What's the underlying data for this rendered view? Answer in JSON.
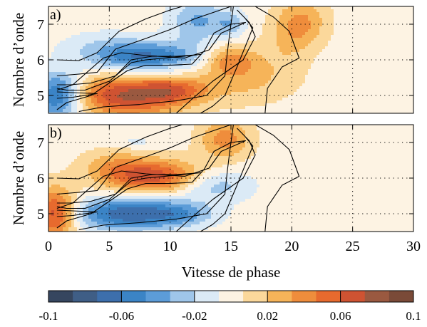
{
  "chart_data": [
    {
      "type": "heatmap",
      "panel_label": "a)",
      "ylabel": "Nombre d’onde",
      "xlim": [
        0,
        30
      ],
      "ylim": [
        4.5,
        7.5
      ],
      "yticks": [
        5,
        6,
        7
      ],
      "xticks": [
        0,
        5,
        10,
        15,
        20,
        25,
        30
      ],
      "grid": true,
      "blobs": [
        {
          "x": 0.8,
          "y": 5.0,
          "sx": 1.4,
          "sy": 0.45,
          "v": -0.07
        },
        {
          "x": 6.5,
          "y": 5.0,
          "sx": 3.2,
          "sy": 0.4,
          "v": 0.075
        },
        {
          "x": 10.5,
          "y": 5.15,
          "sx": 1.8,
          "sy": 0.25,
          "v": 0.035
        },
        {
          "x": 8.2,
          "y": 6.05,
          "sx": 3.0,
          "sy": 0.3,
          "v": -0.065
        },
        {
          "x": 4.5,
          "y": 6.4,
          "sx": 2.5,
          "sy": 0.3,
          "v": -0.015
        },
        {
          "x": 8.5,
          "y": 5.85,
          "sx": 2.2,
          "sy": 0.15,
          "v": 0.01
        },
        {
          "x": 16.0,
          "y": 5.5,
          "sx": 3.0,
          "sy": 0.5,
          "v": 0.025
        },
        {
          "x": 15.0,
          "y": 6.0,
          "sx": 1.4,
          "sy": 0.28,
          "v": 0.035
        },
        {
          "x": 12.3,
          "y": 7.1,
          "sx": 1.6,
          "sy": 0.45,
          "v": -0.035
        },
        {
          "x": 15.0,
          "y": 7.0,
          "sx": 0.9,
          "sy": 0.25,
          "v": -0.025
        },
        {
          "x": 20.8,
          "y": 7.05,
          "sx": 1.5,
          "sy": 0.5,
          "v": 0.035
        },
        {
          "x": 19.5,
          "y": 6.5,
          "sx": 1.3,
          "sy": 0.5,
          "v": 0.012
        }
      ]
    },
    {
      "type": "heatmap",
      "panel_label": "b)",
      "ylabel": "Nombre d’onde",
      "xlabel": "Vitesse de phase",
      "xlim": [
        0,
        30
      ],
      "ylim": [
        4.5,
        7.5
      ],
      "yticks": [
        5,
        6,
        7
      ],
      "xticks": [
        0,
        5,
        10,
        15,
        20,
        25,
        30
      ],
      "grid": true,
      "blobs": [
        {
          "x": 0.5,
          "y": 5.0,
          "sx": 1.2,
          "sy": 0.5,
          "v": 0.07
        },
        {
          "x": 6.5,
          "y": 5.0,
          "sx": 3.0,
          "sy": 0.32,
          "v": -0.07
        },
        {
          "x": 11.0,
          "y": 5.0,
          "sx": 2.0,
          "sy": 0.25,
          "v": -0.03
        },
        {
          "x": 8.5,
          "y": 6.05,
          "sx": 2.8,
          "sy": 0.33,
          "v": 0.07
        },
        {
          "x": 5.2,
          "y": 6.4,
          "sx": 1.8,
          "sy": 0.3,
          "v": 0.02
        },
        {
          "x": 13.5,
          "y": 5.8,
          "sx": 2.2,
          "sy": 0.3,
          "v": -0.03
        },
        {
          "x": 14.5,
          "y": 7.1,
          "sx": 1.5,
          "sy": 0.4,
          "v": 0.04
        },
        {
          "x": 7.3,
          "y": 7.0,
          "sx": 0.7,
          "sy": 0.1,
          "v": -0.015
        },
        {
          "x": 18.0,
          "y": 4.9,
          "sx": 1.5,
          "sy": 0.3,
          "v": -0.006
        }
      ]
    }
  ],
  "contours": [
    [
      [
        2.5,
        4.55
      ],
      [
        4.5,
        4.68
      ],
      [
        7.5,
        4.75
      ],
      [
        10.5,
        4.85
      ],
      [
        13.0,
        5.0
      ],
      [
        14.5,
        5.55
      ],
      [
        14.7,
        6.2
      ],
      [
        14.9,
        6.75
      ],
      [
        15.2,
        7.5
      ]
    ],
    [
      [
        0.7,
        4.6
      ],
      [
        1.5,
        4.8
      ],
      [
        3.5,
        5.0
      ],
      [
        5.0,
        5.35
      ],
      [
        6.5,
        5.7
      ],
      [
        8.0,
        5.85
      ],
      [
        10.0,
        5.85
      ],
      [
        11.8,
        5.88
      ],
      [
        12.8,
        6.25
      ],
      [
        13.6,
        6.75
      ],
      [
        15.0,
        7.0
      ],
      [
        16.2,
        7.05
      ],
      [
        14.2,
        6.75
      ],
      [
        13.2,
        6.28
      ],
      [
        11.2,
        6.05
      ],
      [
        8.0,
        6.12
      ],
      [
        6.0,
        6.2
      ],
      [
        4.5,
        6.05
      ],
      [
        2.0,
        5.3
      ],
      [
        0.7,
        5.15
      ]
    ],
    [
      [
        0.7,
        4.92
      ],
      [
        2.0,
        4.95
      ],
      [
        4.0,
        5.05
      ],
      [
        2.0,
        5.08
      ],
      [
        0.7,
        5.1
      ]
    ],
    [
      [
        0.7,
        5.3
      ],
      [
        1.8,
        5.3
      ],
      [
        3.5,
        5.35
      ],
      [
        5.5,
        5.55
      ],
      [
        6.8,
        6.0
      ],
      [
        8.5,
        6.1
      ],
      [
        10.5,
        6.1
      ],
      [
        12.5,
        6.15
      ],
      [
        10.5,
        6.08
      ],
      [
        8.0,
        6.0
      ],
      [
        6.8,
        5.92
      ],
      [
        5.0,
        5.4
      ],
      [
        3.0,
        5.15
      ],
      [
        1.5,
        5.15
      ],
      [
        0.7,
        5.2
      ]
    ],
    [
      [
        0.7,
        5.55
      ],
      [
        2.5,
        5.6
      ],
      [
        4.0,
        5.65
      ],
      [
        5.5,
        6.3
      ],
      [
        8.0,
        6.6
      ],
      [
        10.0,
        6.85
      ],
      [
        12.0,
        7.15
      ],
      [
        15.0,
        7.5
      ]
    ],
    [
      [
        0.7,
        6.0
      ],
      [
        2.5,
        5.98
      ],
      [
        4.0,
        6.2
      ],
      [
        5.8,
        6.8
      ],
      [
        8.0,
        7.15
      ],
      [
        10.0,
        7.4
      ],
      [
        11.0,
        7.5
      ]
    ],
    [
      [
        17.8,
        4.5
      ],
      [
        18.0,
        5.2
      ],
      [
        19.2,
        5.8
      ],
      [
        20.6,
        6.05
      ],
      [
        19.8,
        6.8
      ],
      [
        18.5,
        7.2
      ],
      [
        17.0,
        7.5
      ]
    ],
    [
      [
        10.5,
        4.5
      ],
      [
        11.8,
        4.9
      ],
      [
        13.5,
        5.4
      ],
      [
        16.0,
        6.0
      ],
      [
        17.0,
        6.65
      ],
      [
        16.5,
        7.05
      ],
      [
        15.5,
        7.4
      ]
    ],
    [
      [
        12.5,
        4.5
      ],
      [
        13.5,
        4.7
      ],
      [
        14.5,
        5.0
      ],
      [
        15.5,
        5.8
      ],
      [
        16.8,
        6.9
      ],
      [
        16.2,
        7.15
      ]
    ]
  ],
  "colorbar": {
    "min": -0.1,
    "max": 0.1,
    "tick_labels": [
      "-0.1",
      "-0.06",
      "-0.02",
      "0.02",
      "0.06",
      "0.1"
    ],
    "colors": [
      "#36465f",
      "#3f5e86",
      "#3d6fac",
      "#3b84c6",
      "#5c9cd8",
      "#9fc6ea",
      "#dbeaf6",
      "#fdf3e3",
      "#fbd89b",
      "#f6b459",
      "#ef8d3c",
      "#e76a2e",
      "#cf5332",
      "#9a5940",
      "#7a4a38"
    ]
  }
}
